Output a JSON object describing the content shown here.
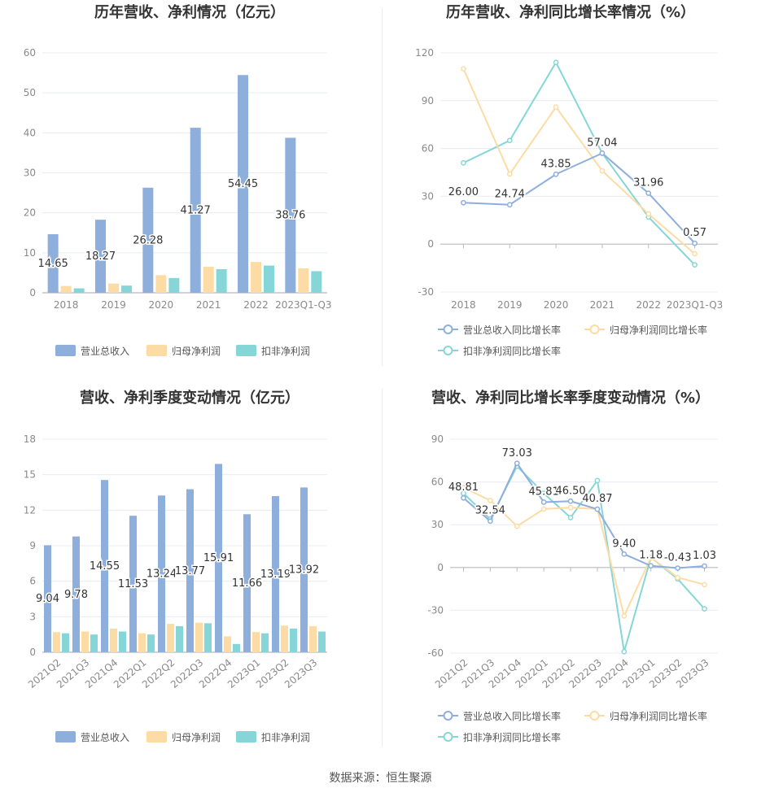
{
  "colors": {
    "revenue": "#8eaedc",
    "net_profit": "#fcdca4",
    "deducted_profit": "#86d6d8",
    "grid": "#e8ecf2",
    "axis_text": "#8a8a8a",
    "title": "#333333"
  },
  "footer": {
    "source": "数据来源：恒生聚源"
  },
  "chart_data": [
    {
      "id": "annual-amount",
      "type": "bar",
      "title": "历年营收、净利情况（亿元）",
      "categories": [
        "2018",
        "2019",
        "2020",
        "2021",
        "2022",
        "2023Q1-Q3"
      ],
      "series": [
        {
          "name": "营业总收入",
          "values": [
            14.65,
            18.27,
            26.28,
            41.27,
            54.45,
            38.76
          ],
          "labels": [
            "14.65",
            "18.27",
            "26.28",
            "41.27",
            "54.45",
            "38.76"
          ]
        },
        {
          "name": "归母净利润",
          "values": [
            1.7,
            2.3,
            4.4,
            6.5,
            7.7,
            6.1
          ]
        },
        {
          "name": "扣非净利润",
          "values": [
            1.1,
            1.8,
            3.7,
            5.9,
            6.8,
            5.4
          ]
        }
      ],
      "ylim": [
        0,
        60
      ],
      "yticks": [
        "0",
        "10",
        "20",
        "30",
        "40",
        "50",
        "60"
      ],
      "legend": "bottom-center"
    },
    {
      "id": "annual-growth",
      "type": "line",
      "title": "历年营收、净利同比增长率情况（%）",
      "categories": [
        "2018",
        "2019",
        "2020",
        "2021",
        "2022",
        "2023Q1-Q3"
      ],
      "series": [
        {
          "name": "营业总收入同比增长率",
          "values": [
            26.0,
            24.74,
            43.85,
            57.04,
            31.96,
            0.57
          ],
          "labels": [
            "26.00",
            "24.74",
            "43.85",
            "57.04",
            "31.96",
            "0.57"
          ]
        },
        {
          "name": "归母净利润同比增长率",
          "values": [
            110,
            44,
            86,
            46,
            19,
            -6
          ]
        },
        {
          "name": "扣非净利润同比增长率",
          "values": [
            51,
            65,
            114,
            57,
            17,
            -13
          ]
        }
      ],
      "ylim": [
        -30,
        120
      ],
      "yticks": [
        "-30",
        "0",
        "30",
        "60",
        "90",
        "120"
      ],
      "legend": "bottom-center"
    },
    {
      "id": "quarterly-amount",
      "type": "bar",
      "title": "营收、净利季度变动情况（亿元）",
      "categories": [
        "2021Q2",
        "2021Q3",
        "2021Q4",
        "2022Q1",
        "2022Q2",
        "2022Q3",
        "2022Q4",
        "2023Q1",
        "2023Q2",
        "2023Q3"
      ],
      "series": [
        {
          "name": "营业总收入",
          "values": [
            9.04,
            9.78,
            14.55,
            11.53,
            13.24,
            13.77,
            15.91,
            11.66,
            13.19,
            13.92
          ],
          "labels": [
            "9.04",
            "9.78",
            "14.55",
            "11.53",
            "13.24",
            "13.77",
            "15.91",
            "11.66",
            "13.19",
            "13.92"
          ]
        },
        {
          "name": "归母净利润",
          "values": [
            1.7,
            1.75,
            2.0,
            1.6,
            2.4,
            2.5,
            1.35,
            1.7,
            2.25,
            2.2
          ]
        },
        {
          "name": "扣非净利润",
          "values": [
            1.6,
            1.5,
            1.75,
            1.5,
            2.2,
            2.45,
            0.7,
            1.6,
            2.0,
            1.75
          ]
        }
      ],
      "ylim": [
        0,
        18
      ],
      "yticks": [
        "0",
        "3",
        "6",
        "9",
        "12",
        "15",
        "18"
      ],
      "legend": "bottom-center"
    },
    {
      "id": "quarterly-growth",
      "type": "line",
      "title": "营收、净利同比增长率季度变动情况（%）",
      "categories": [
        "2021Q2",
        "2021Q3",
        "2021Q4",
        "2022Q1",
        "2022Q2",
        "2022Q3",
        "2022Q4",
        "2023Q1",
        "2023Q2",
        "2023Q3"
      ],
      "series": [
        {
          "name": "营业总收入同比增长率",
          "values": [
            48.81,
            32.54,
            73.03,
            45.81,
            46.5,
            40.87,
            9.4,
            1.18,
            -0.43,
            1.03
          ],
          "labels": [
            "48.81",
            "32.54",
            "73.03",
            "45.81",
            "46.50",
            "40.87",
            "9.40",
            "1.18",
            "-0.43",
            "1.03"
          ]
        },
        {
          "name": "归母净利润同比增长率",
          "values": [
            56,
            47,
            29,
            41,
            42,
            41,
            -34,
            7,
            -7,
            -12
          ]
        },
        {
          "name": "扣非净利润同比增长率",
          "values": [
            52,
            34,
            71,
            52,
            35,
            61,
            -59,
            7,
            -8,
            -29
          ]
        }
      ],
      "ylim": [
        -60,
        90
      ],
      "yticks": [
        "-60",
        "-30",
        "0",
        "30",
        "60",
        "90"
      ],
      "legend": "bottom-center"
    }
  ]
}
